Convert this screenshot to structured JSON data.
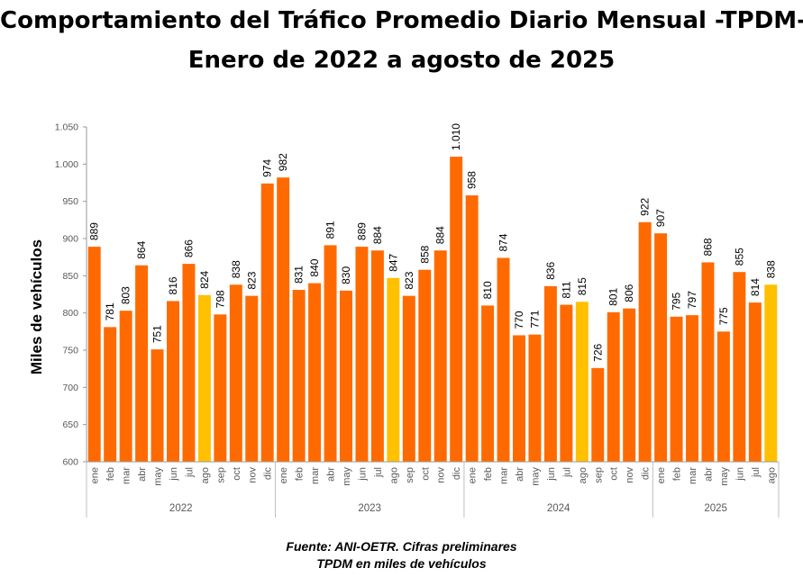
{
  "title_lines": [
    "Comportamiento del Tráfico Promedio Diario Mensual -TPDM-",
    "Enero de 2022 a agosto de 2025"
  ],
  "footer": {
    "source": "Fuente: ANI-OETR. Cifras preliminares",
    "note": "TPDM en miles de vehículos"
  },
  "colors": {
    "bar": "#ff6a00",
    "highlight": "#ffc000",
    "axis": "#999999",
    "tick_text": "#595959"
  },
  "chart_data": {
    "type": "bar",
    "title": "Comportamiento del Tráfico Promedio Diario Mensual -TPDM- Enero de 2022 a agosto de 2025",
    "ylabel": "Miles de vehículos",
    "xlabel": "",
    "ylim": [
      600,
      1050
    ],
    "yticks": [
      600,
      650,
      700,
      750,
      800,
      850,
      900,
      950,
      1000,
      1050
    ],
    "ytick_labels": [
      "600",
      "650",
      "700",
      "750",
      "800",
      "850",
      "900",
      "950",
      "1.000",
      "1.050"
    ],
    "years": [
      {
        "label": "2022",
        "count": 12
      },
      {
        "label": "2023",
        "count": 12
      },
      {
        "label": "2024",
        "count": 12
      },
      {
        "label": "2025",
        "count": 8
      }
    ],
    "categories": [
      "ene",
      "feb",
      "mar",
      "abr",
      "may",
      "jun",
      "jul",
      "ago",
      "sep",
      "oct",
      "nov",
      "dic",
      "ene",
      "feb",
      "mar",
      "abr",
      "may",
      "jun",
      "jul",
      "ago",
      "sep",
      "oct",
      "nov",
      "dic",
      "ene",
      "feb",
      "mar",
      "abr",
      "may",
      "jun",
      "jul",
      "ago",
      "sep",
      "oct",
      "nov",
      "dic",
      "ene",
      "feb",
      "mar",
      "abr",
      "may",
      "jun",
      "jul",
      "ago"
    ],
    "values": [
      889,
      781,
      803,
      864,
      751,
      816,
      866,
      824,
      798,
      838,
      823,
      974,
      982,
      831,
      840,
      891,
      830,
      889,
      884,
      847,
      823,
      858,
      884,
      1010,
      958,
      810,
      874,
      770,
      771,
      836,
      811,
      815,
      726,
      801,
      806,
      922,
      907,
      795,
      797,
      868,
      775,
      855,
      814,
      838
    ],
    "value_labels": [
      "889",
      "781",
      "803",
      "864",
      "751",
      "816",
      "866",
      "824",
      "798",
      "838",
      "823",
      "974",
      "982",
      "831",
      "840",
      "891",
      "830",
      "889",
      "884",
      "847",
      "823",
      "858",
      "884",
      "1.010",
      "958",
      "810",
      "874",
      "770",
      "771",
      "836",
      "811",
      "815",
      "726",
      "801",
      "806",
      "922",
      "907",
      "795",
      "797",
      "868",
      "775",
      "855",
      "814",
      "838"
    ],
    "highlight_indices": [
      7,
      19,
      31,
      43
    ]
  }
}
